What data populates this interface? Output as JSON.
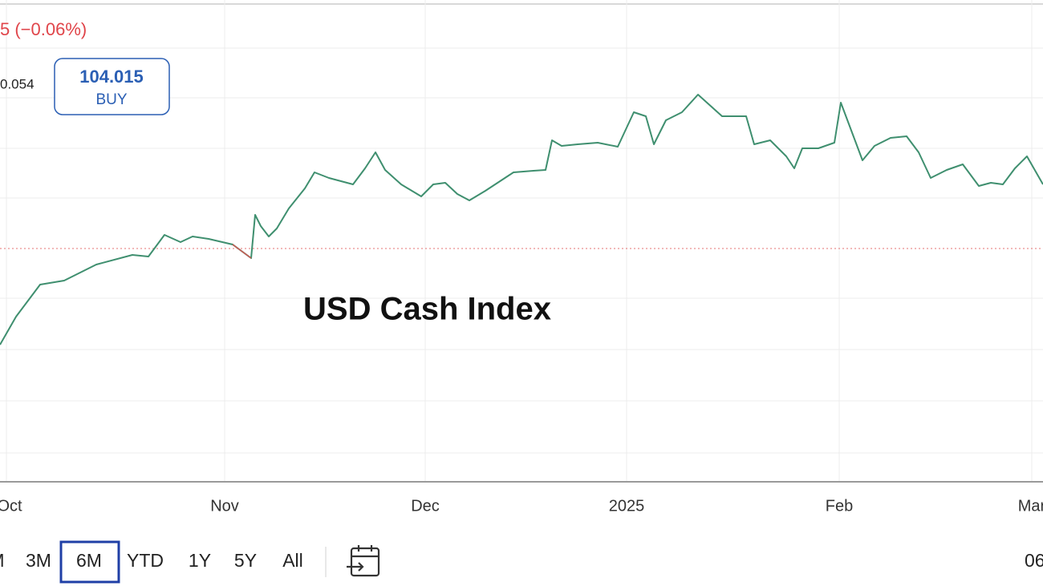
{
  "header": {
    "change": "5 (−0.06%)",
    "price_partial": "0.054",
    "buy_price": "104.015",
    "buy_label": "BUY"
  },
  "chart": {
    "title": "USD Cash Index",
    "x_labels": [
      "Oct",
      "Nov",
      "Dec",
      "2025",
      "Feb",
      "Mar"
    ]
  },
  "toolbar": {
    "ranges": [
      "M",
      "3M",
      "6M",
      "YTD",
      "1Y",
      "5Y",
      "All"
    ],
    "time_partial": "06"
  }
}
